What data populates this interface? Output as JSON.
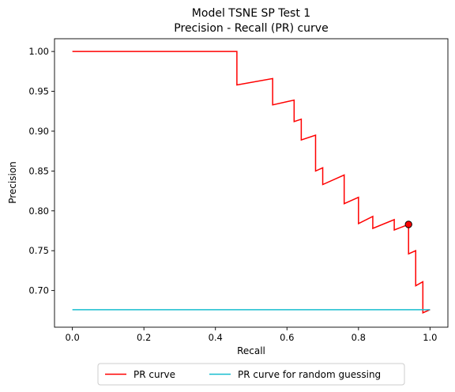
{
  "chart_data": {
    "type": "line",
    "title": "Model TSNE SP Test 1",
    "subtitle": "Precision - Recall (PR) curve",
    "xlabel": "Recall",
    "ylabel": "Precision",
    "xlim": [
      -0.05,
      1.05
    ],
    "ylim": [
      0.654,
      1.016
    ],
    "x_ticks": [
      0.0,
      0.2,
      0.4,
      0.6,
      0.8,
      1.0
    ],
    "x_tick_labels": [
      "0.0",
      "0.2",
      "0.4",
      "0.6",
      "0.8",
      "1.0"
    ],
    "y_ticks": [
      0.7,
      0.75,
      0.8,
      0.85,
      0.9,
      0.95,
      1.0
    ],
    "y_tick_labels": [
      "0.70",
      "0.75",
      "0.80",
      "0.85",
      "0.90",
      "0.95",
      "1.00"
    ],
    "grid": false,
    "legend_position": "bottom-center",
    "series": [
      {
        "name": "PR curve",
        "color": "#ff0000",
        "x": [
          0.0,
          0.46,
          0.46,
          0.56,
          0.56,
          0.62,
          0.62,
          0.64,
          0.64,
          0.68,
          0.68,
          0.7,
          0.7,
          0.76,
          0.76,
          0.8,
          0.8,
          0.84,
          0.84,
          0.9,
          0.9,
          0.94,
          0.94,
          0.96,
          0.96,
          0.98,
          0.98,
          1.0
        ],
        "y": [
          1.0,
          1.0,
          0.958,
          0.966,
          0.933,
          0.939,
          0.912,
          0.915,
          0.889,
          0.895,
          0.85,
          0.854,
          0.833,
          0.845,
          0.809,
          0.817,
          0.784,
          0.793,
          0.778,
          0.789,
          0.776,
          0.783,
          0.746,
          0.75,
          0.706,
          0.711,
          0.672,
          0.676
        ]
      },
      {
        "name": "PR curve for random guessing",
        "color": "#17becf",
        "x": [
          0.0,
          1.0
        ],
        "y": [
          0.676,
          0.676
        ]
      }
    ],
    "marker": {
      "x": 0.94,
      "y": 0.783,
      "color": "#ff0000"
    }
  }
}
